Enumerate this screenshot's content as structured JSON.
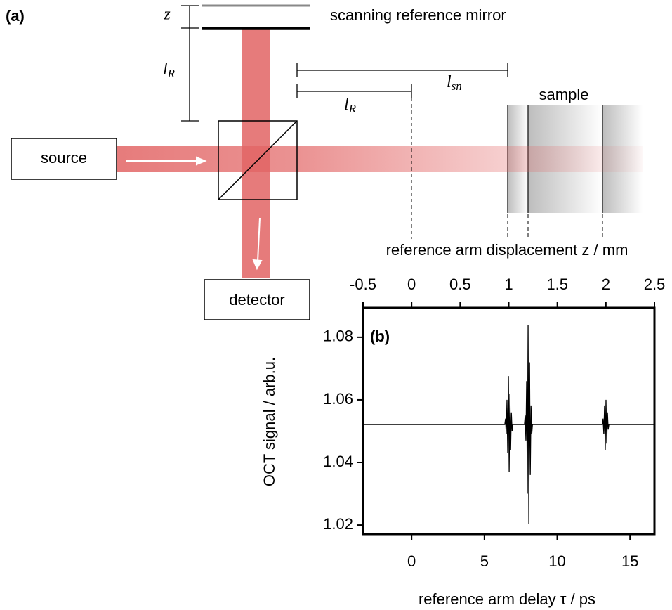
{
  "diagram": {
    "panel_label": "(a)",
    "mirror_label": "scanning reference mirror",
    "z_label": "z",
    "lR_left": {
      "main": "l",
      "sub": "R"
    },
    "lR_bracket": {
      "main": "l",
      "sub": "R"
    },
    "lsn_bracket": {
      "main": "l",
      "sub": "sn"
    },
    "sample_label": "sample",
    "source_label": "source",
    "detector_label": "detector"
  },
  "chart_data": {
    "type": "line",
    "panel_label": "(b)",
    "x_label": "reference arm delay τ / ps",
    "x2_label": "reference arm displacement z / mm",
    "y_label": "OCT signal / arb.u.",
    "xlim": [
      -3.336,
      16.678
    ],
    "xticks": [
      0,
      5,
      10,
      15
    ],
    "x2lim": [
      -0.5,
      2.5
    ],
    "x2ticks": [
      -0.5,
      0,
      0.5,
      1,
      1.5,
      2,
      2.5
    ],
    "ylim": [
      1.0171,
      1.0894
    ],
    "yticks": [
      1.02,
      1.04,
      1.06,
      1.08
    ],
    "series": [
      {
        "color": "#000000",
        "x": [
          -3.336,
          6.4,
          6.45,
          6.5,
          6.55,
          6.6,
          6.65,
          6.7,
          6.75,
          6.8,
          6.85,
          6.9,
          6.95,
          7.75,
          7.8,
          7.85,
          7.9,
          7.95,
          8.0,
          8.05,
          8.1,
          8.15,
          8.2,
          8.25,
          8.3,
          13.1,
          13.15,
          13.2,
          13.25,
          13.3,
          13.35,
          13.4,
          13.45,
          13.5,
          13.55,
          16.678
        ],
        "values": [
          1.0521,
          1.0521,
          1.054,
          1.049,
          1.06,
          1.043,
          1.0676,
          1.037,
          1.062,
          1.044,
          1.056,
          1.05,
          1.0521,
          1.0521,
          1.055,
          1.047,
          1.066,
          1.03,
          1.0838,
          1.0204,
          1.072,
          1.036,
          1.058,
          1.049,
          1.0521,
          1.0521,
          1.054,
          1.049,
          1.058,
          1.044,
          1.06,
          1.046,
          1.056,
          1.0505,
          1.0521,
          1.0521
        ]
      }
    ]
  }
}
